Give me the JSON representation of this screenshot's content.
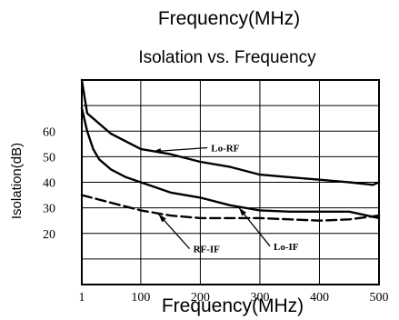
{
  "chart_data": {
    "type": "line",
    "top_label": "Frequency(MHz)",
    "title": "Isolation vs. Frequency",
    "xlabel": "Frequency(MHz)",
    "ylabel": "Isolation(dB)",
    "xlim": [
      1,
      500
    ],
    "ylim": [
      0,
      80
    ],
    "x_ticks": [
      {
        "value": 1,
        "label": "1"
      },
      {
        "value": 100,
        "label": "100"
      },
      {
        "value": 200,
        "label": "200"
      },
      {
        "value": 300,
        "label": "300"
      },
      {
        "value": 400,
        "label": "400"
      },
      {
        "value": 500,
        "label": "500"
      }
    ],
    "y_ticks": [
      {
        "value": 20,
        "label": "20"
      },
      {
        "value": 30,
        "label": "30"
      },
      {
        "value": 40,
        "label": "40"
      },
      {
        "value": 50,
        "label": "50"
      },
      {
        "value": 60,
        "label": "60"
      }
    ],
    "y_gridlines": [
      10,
      20,
      30,
      40,
      50,
      60,
      70
    ],
    "x_gridlines": [
      100,
      200,
      300,
      400
    ],
    "grid": true,
    "series": [
      {
        "name": "Lo-RF",
        "style": "solid",
        "points": [
          [
            1,
            80
          ],
          [
            10,
            67
          ],
          [
            50,
            59
          ],
          [
            100,
            53
          ],
          [
            150,
            51
          ],
          [
            200,
            48
          ],
          [
            250,
            46
          ],
          [
            300,
            43
          ],
          [
            350,
            42
          ],
          [
            400,
            41
          ],
          [
            450,
            40
          ],
          [
            490,
            39
          ],
          [
            500,
            40
          ]
        ]
      },
      {
        "name": "Lo-IF",
        "style": "solid",
        "points": [
          [
            1,
            69
          ],
          [
            10,
            60
          ],
          [
            20,
            53
          ],
          [
            30,
            49
          ],
          [
            50,
            45
          ],
          [
            75,
            42
          ],
          [
            100,
            40
          ],
          [
            150,
            36
          ],
          [
            200,
            34
          ],
          [
            250,
            31
          ],
          [
            300,
            29
          ],
          [
            350,
            28.5
          ],
          [
            400,
            28.5
          ],
          [
            450,
            28.5
          ],
          [
            500,
            26
          ]
        ]
      },
      {
        "name": "RF-IF",
        "style": "dashed",
        "points": [
          [
            1,
            35
          ],
          [
            50,
            32
          ],
          [
            100,
            29
          ],
          [
            150,
            27
          ],
          [
            200,
            26
          ],
          [
            250,
            26
          ],
          [
            300,
            26
          ],
          [
            350,
            25.5
          ],
          [
            400,
            25
          ],
          [
            450,
            25.5
          ],
          [
            500,
            27
          ]
        ]
      }
    ],
    "annotations": [
      {
        "text": "Lo-RF",
        "series": "Lo-RF",
        "at": [
          120,
          52
        ],
        "label_at": [
          215,
          53.5
        ]
      },
      {
        "text": "RF-IF",
        "series": "RF-IF",
        "at": [
          130,
          27.5
        ],
        "label_at": [
          185,
          14
        ]
      },
      {
        "text": "Lo-IF",
        "series": "Lo-IF",
        "at": [
          265,
          30
        ],
        "label_at": [
          320,
          15
        ]
      }
    ]
  }
}
